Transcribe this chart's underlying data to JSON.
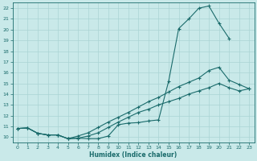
{
  "title": "",
  "xlabel": "Humidex (Indice chaleur)",
  "xlim": [
    -0.5,
    23.5
  ],
  "ylim": [
    9.5,
    22.5
  ],
  "xticks": [
    0,
    1,
    2,
    3,
    4,
    5,
    6,
    7,
    8,
    9,
    10,
    11,
    12,
    13,
    14,
    15,
    16,
    17,
    18,
    19,
    20,
    21,
    22,
    23
  ],
  "yticks": [
    10,
    11,
    12,
    13,
    14,
    15,
    16,
    17,
    18,
    19,
    20,
    21,
    22
  ],
  "bg_color": "#c9e9e9",
  "grid_color": "#aad4d4",
  "line_color": "#1a6b6b",
  "line1_x": [
    0,
    1,
    2,
    3,
    4,
    5,
    6,
    7,
    8,
    9,
    10,
    11,
    12,
    13,
    14,
    15,
    16,
    17,
    18,
    19,
    20,
    21
  ],
  "line1_y": [
    10.8,
    10.85,
    10.35,
    10.2,
    10.2,
    9.85,
    9.9,
    9.85,
    9.85,
    10.1,
    11.15,
    11.3,
    11.35,
    11.5,
    11.6,
    15.2,
    20.1,
    21.0,
    22.0,
    22.2,
    20.6,
    19.2
  ],
  "line2_x": [
    0,
    1,
    2,
    3,
    4,
    5,
    6,
    7,
    8,
    9,
    10,
    11,
    12,
    13,
    14,
    15,
    16,
    17,
    18,
    19,
    20,
    21,
    22,
    23
  ],
  "line2_y": [
    10.8,
    10.85,
    10.35,
    10.2,
    10.2,
    9.85,
    10.1,
    10.4,
    10.9,
    11.4,
    11.85,
    12.3,
    12.8,
    13.3,
    13.7,
    14.2,
    14.7,
    15.1,
    15.5,
    16.2,
    16.5,
    15.3,
    14.9,
    14.5
  ],
  "line3_x": [
    0,
    1,
    2,
    3,
    4,
    5,
    6,
    7,
    8,
    9,
    10,
    11,
    12,
    13,
    14,
    15,
    16,
    17,
    18,
    19,
    20,
    21,
    22,
    23
  ],
  "line3_y": [
    10.8,
    10.85,
    10.35,
    10.2,
    10.2,
    9.85,
    9.9,
    10.1,
    10.4,
    10.9,
    11.4,
    11.85,
    12.3,
    12.6,
    13.0,
    13.3,
    13.6,
    14.0,
    14.3,
    14.6,
    15.0,
    14.6,
    14.3,
    14.5
  ]
}
